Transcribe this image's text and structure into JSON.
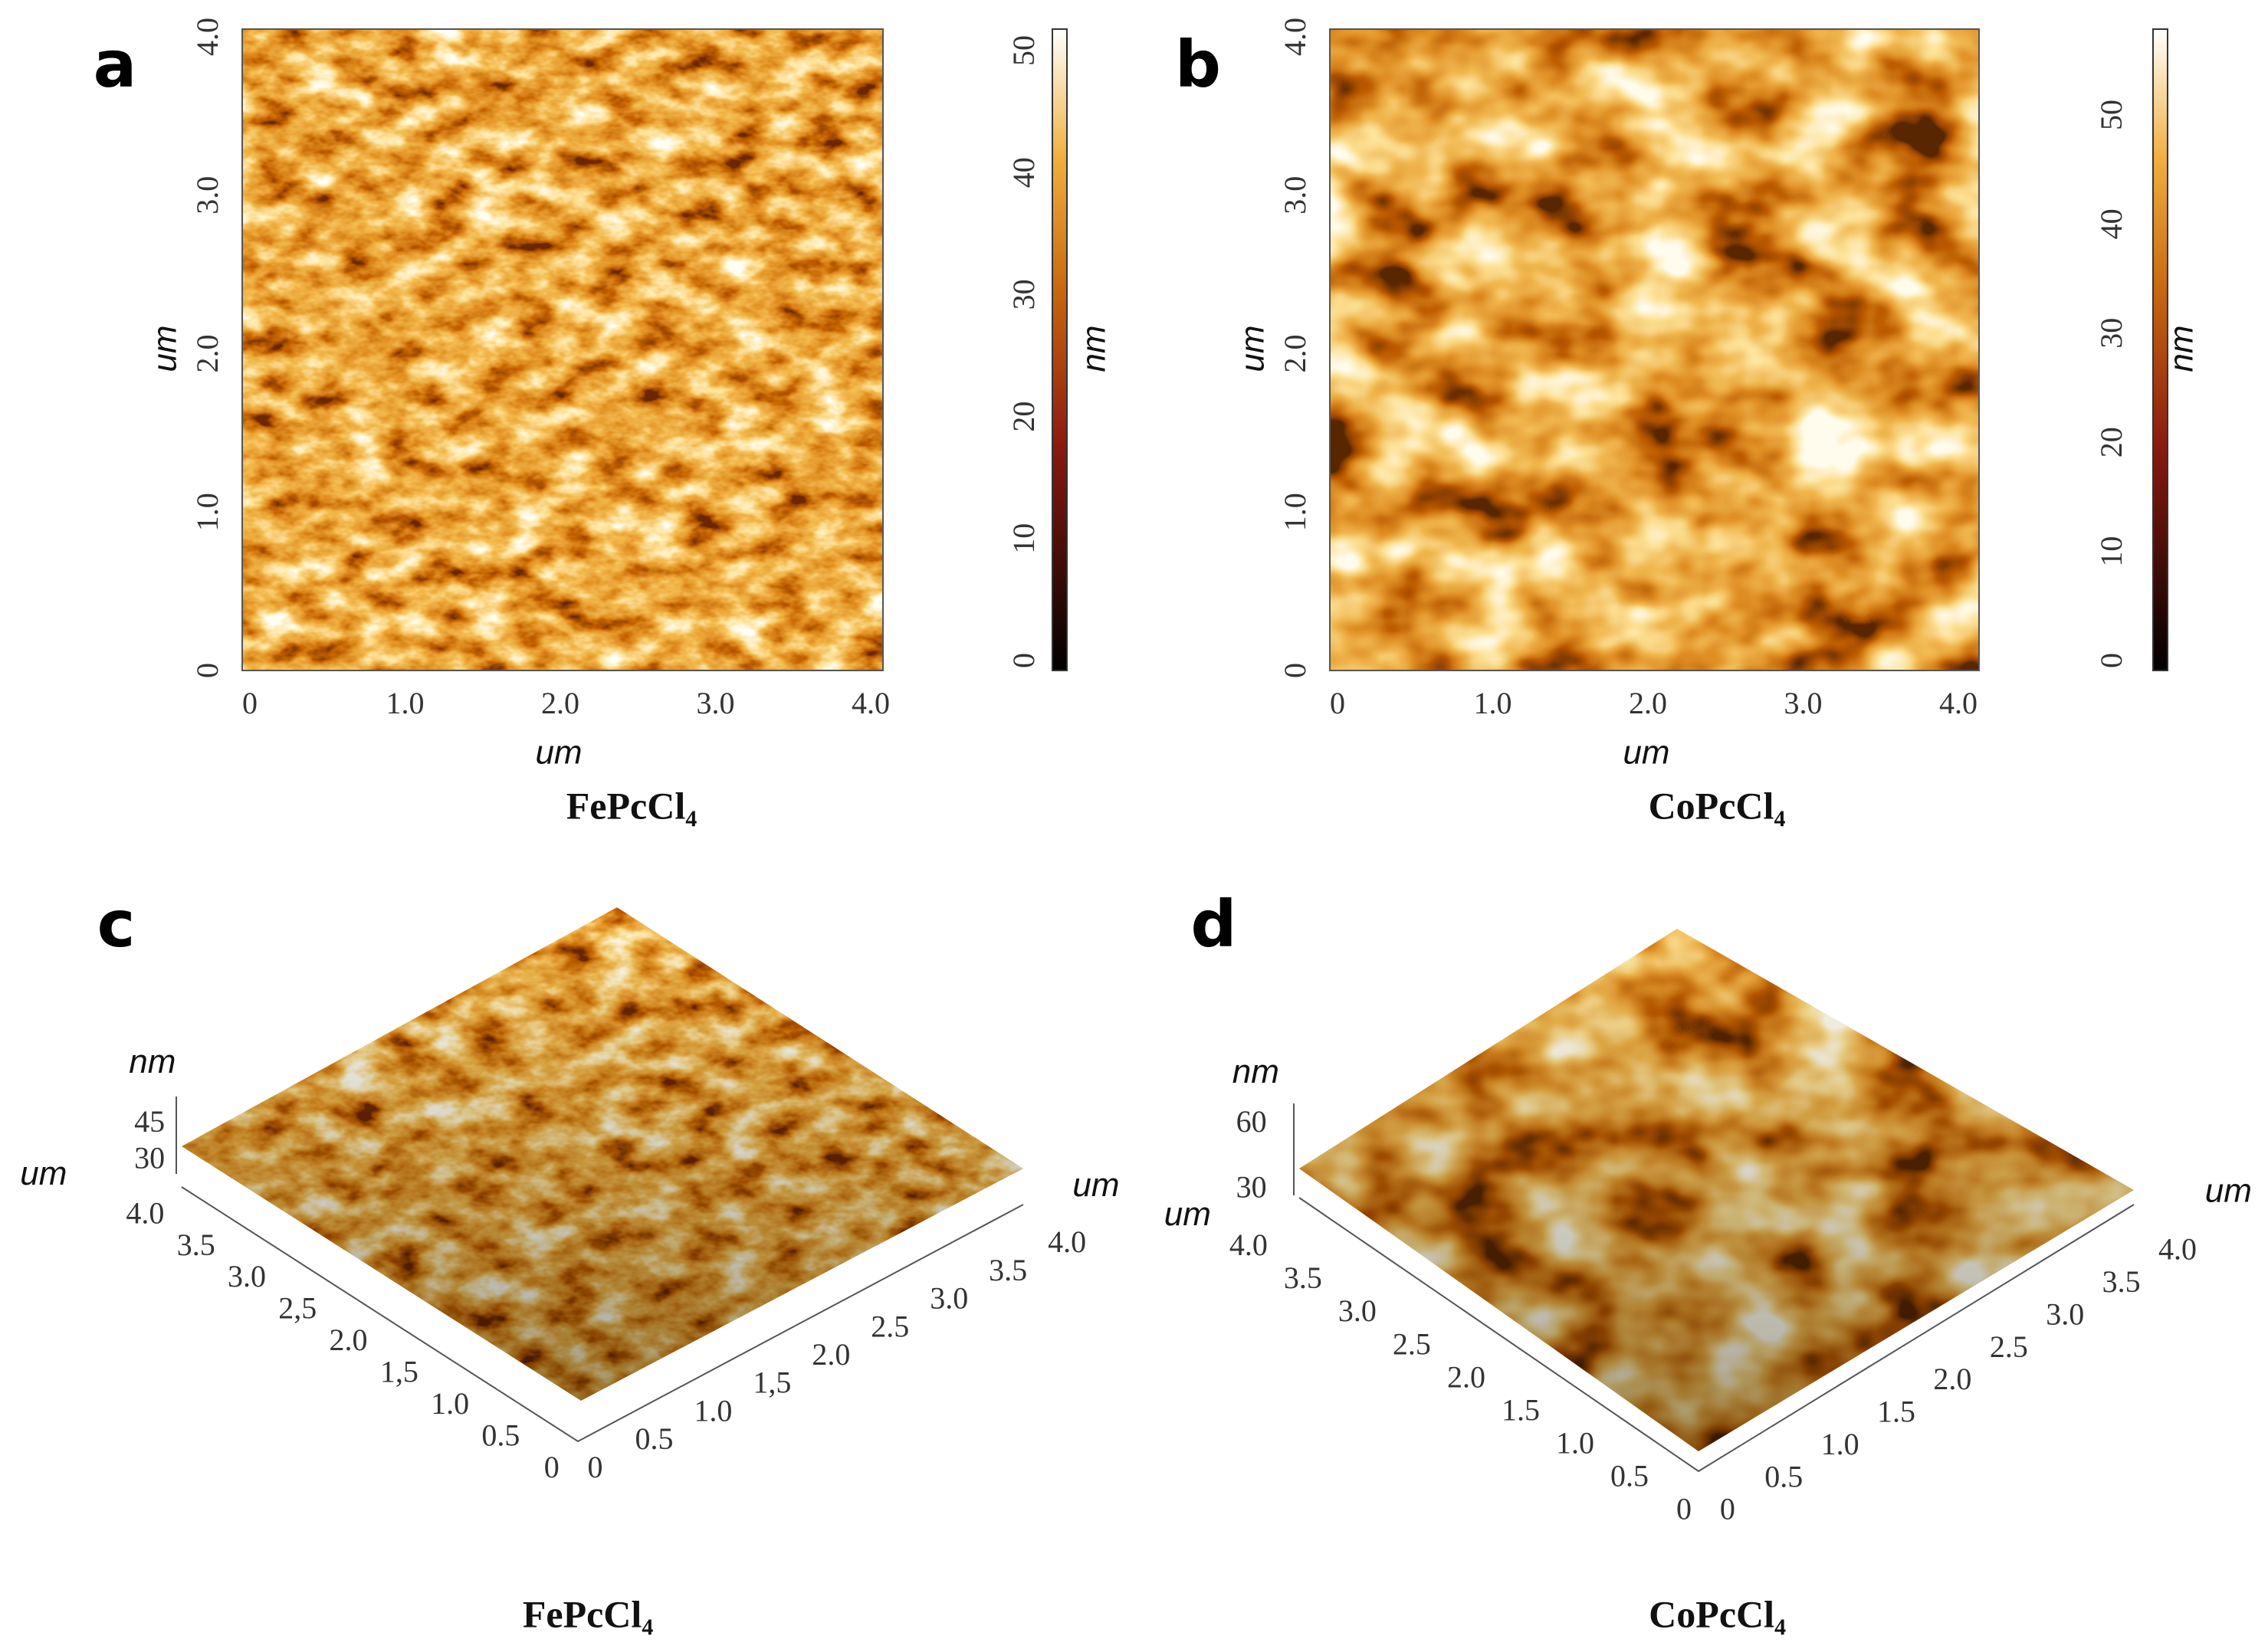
{
  "panels": [
    {
      "letter": "a",
      "caption": "FePcCl₄",
      "x_label": "um",
      "y_label": "um",
      "x_ticks": [
        "0",
        "1.0",
        "2.0",
        "3.0",
        "4.0"
      ],
      "y_ticks": [
        "0",
        "1.0",
        "2.0",
        "3.0",
        "4.0"
      ],
      "colorbar_label": "nm",
      "colorbar_ticks": [
        "0",
        "10",
        "20",
        "30",
        "40",
        "50"
      ]
    },
    {
      "letter": "b",
      "caption": "CoPcCl₄",
      "x_label": "um",
      "y_label": "um",
      "x_ticks": [
        "0",
        "1.0",
        "2.0",
        "3.0",
        "4.0"
      ],
      "y_ticks": [
        "0",
        "1.0",
        "2.0",
        "3.0",
        "4.0"
      ],
      "colorbar_label": "nm",
      "colorbar_ticks": [
        "0",
        "10",
        "20",
        "30",
        "40",
        "50"
      ]
    },
    {
      "letter": "c",
      "caption": "FePcCl₄",
      "z_label": "nm",
      "z_ticks": [
        "45",
        "30"
      ],
      "left_label": "um",
      "left_ticks": [
        "4.0",
        "3.5",
        "3.0",
        "2,5",
        "2.0",
        "1,5",
        "1.0",
        "0.5",
        "0"
      ],
      "right_label": "um",
      "right_ticks": [
        "0",
        "0.5",
        "1.0",
        "1,5",
        "2.0",
        "2.5",
        "3.0",
        "3.5",
        "4.0"
      ]
    },
    {
      "letter": "d",
      "caption": "CoPcCl₄",
      "z_label": "nm",
      "z_ticks": [
        "60",
        "30"
      ],
      "left_label": "um",
      "left_ticks": [
        "4.0",
        "3.5",
        "3.0",
        "2.5",
        "2.0",
        "1.5",
        "1.0",
        "0.5",
        "0"
      ],
      "right_label": "um",
      "right_ticks": [
        "0",
        "0.5",
        "1.0",
        "1.5",
        "2.0",
        "2.5",
        "3.0",
        "3.5",
        "4.0"
      ]
    }
  ]
}
